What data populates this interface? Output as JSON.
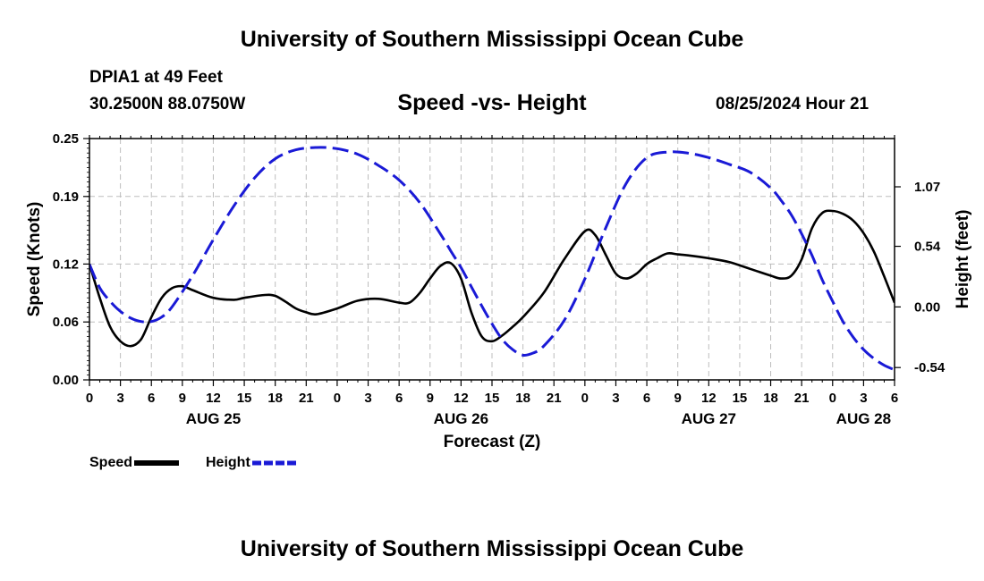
{
  "header": {
    "title": "University of Southern Mississippi Ocean Cube",
    "station": "DPIA1 at 49 Feet",
    "coords": "30.2500N  88.0750W",
    "datetime": "08/25/2024 Hour 21"
  },
  "footer": {
    "title": "University of Southern Mississippi Ocean Cube"
  },
  "chart_data": {
    "type": "line",
    "title": "Speed -vs- Height",
    "xlabel": "Forecast (Z)",
    "ylabel_left": "Speed (Knots)",
    "ylabel_right": "Height (feet)",
    "x_unit": "forecast hours from 08/25 00Z",
    "xlim": [
      0,
      78
    ],
    "ylim_left": [
      0,
      0.25
    ],
    "ylim_right": [
      -0.65,
      1.5
    ],
    "x_ticks": [
      0,
      3,
      6,
      9,
      12,
      15,
      18,
      21,
      24,
      27,
      30,
      33,
      36,
      39,
      42,
      45,
      48,
      51,
      54,
      57,
      60,
      63,
      66,
      69,
      72,
      75,
      78
    ],
    "x_tick_labels": [
      "0",
      "3",
      "6",
      "9",
      "12",
      "15",
      "18",
      "21",
      "0",
      "3",
      "6",
      "9",
      "12",
      "15",
      "18",
      "21",
      "0",
      "3",
      "6",
      "9",
      "12",
      "15",
      "18",
      "21",
      "0",
      "3",
      "6"
    ],
    "day_labels": [
      {
        "x": 12,
        "label": "AUG 25"
      },
      {
        "x": 36,
        "label": "AUG 26"
      },
      {
        "x": 60,
        "label": "AUG 27"
      },
      {
        "x": 75,
        "label": "AUG 28"
      }
    ],
    "y_left_ticks": [
      0,
      0.06,
      0.12,
      0.19,
      0.25
    ],
    "y_left_tick_labels": [
      "0.00",
      "0.06",
      "0.12",
      "0.19",
      "0.25"
    ],
    "y_right_ticks": [
      -0.54,
      0.0,
      0.54,
      1.07
    ],
    "y_right_tick_labels": [
      "-0.54",
      "0.00",
      "0.54",
      "1.07"
    ],
    "grid": true,
    "legend": "bottom-left",
    "series": [
      {
        "name": "Speed",
        "axis": "left",
        "color": "#000000",
        "dash": "solid",
        "x": [
          0,
          1,
          2,
          3,
          4,
          5,
          6,
          7,
          8,
          9,
          10,
          12,
          14,
          15,
          17,
          18,
          19,
          20,
          21,
          22,
          24,
          26,
          28,
          30,
          31,
          32,
          33,
          34,
          35,
          36,
          37,
          38,
          39,
          40,
          41,
          42,
          44,
          46,
          48,
          49,
          50,
          51,
          52,
          53,
          54,
          55,
          56,
          57,
          58,
          60,
          62,
          64,
          66,
          67,
          68,
          69,
          70,
          71,
          72,
          73,
          74,
          75,
          76,
          77,
          78
        ],
        "y": [
          0.12,
          0.085,
          0.055,
          0.04,
          0.035,
          0.042,
          0.065,
          0.085,
          0.095,
          0.097,
          0.093,
          0.085,
          0.083,
          0.085,
          0.088,
          0.087,
          0.081,
          0.074,
          0.07,
          0.068,
          0.074,
          0.082,
          0.084,
          0.08,
          0.08,
          0.09,
          0.105,
          0.118,
          0.121,
          0.105,
          0.07,
          0.045,
          0.04,
          0.046,
          0.055,
          0.065,
          0.09,
          0.125,
          0.154,
          0.15,
          0.13,
          0.11,
          0.105,
          0.11,
          0.12,
          0.126,
          0.131,
          0.13,
          0.129,
          0.126,
          0.122,
          0.115,
          0.108,
          0.105,
          0.108,
          0.125,
          0.157,
          0.173,
          0.175,
          0.172,
          0.165,
          0.152,
          0.133,
          0.107,
          0.08
        ]
      },
      {
        "name": "Height",
        "axis": "right",
        "color": "#1a1ad6",
        "dash": "dashed",
        "x": [
          0,
          1,
          2,
          3,
          4,
          5,
          6,
          7,
          8,
          10,
          12,
          14,
          16,
          18,
          20,
          22,
          24,
          26,
          28,
          30,
          32,
          34,
          35,
          36,
          37,
          38,
          39,
          40,
          41,
          42,
          43,
          44,
          46,
          48,
          50,
          52,
          54,
          56,
          58,
          60,
          62,
          64,
          66,
          67,
          68,
          69,
          70,
          71,
          72,
          73,
          74,
          75,
          76,
          77,
          78
        ],
        "y": [
          0.38,
          0.17,
          0.05,
          -0.04,
          -0.1,
          -0.13,
          -0.13,
          -0.09,
          0.0,
          0.28,
          0.6,
          0.9,
          1.15,
          1.32,
          1.4,
          1.42,
          1.41,
          1.36,
          1.26,
          1.13,
          0.93,
          0.65,
          0.5,
          0.35,
          0.18,
          0.01,
          -0.15,
          -0.29,
          -0.38,
          -0.43,
          -0.41,
          -0.35,
          -0.12,
          0.25,
          0.7,
          1.1,
          1.33,
          1.38,
          1.37,
          1.33,
          1.27,
          1.2,
          1.06,
          0.95,
          0.82,
          0.65,
          0.46,
          0.24,
          0.05,
          -0.13,
          -0.27,
          -0.38,
          -0.46,
          -0.52,
          -0.56
        ]
      }
    ]
  }
}
